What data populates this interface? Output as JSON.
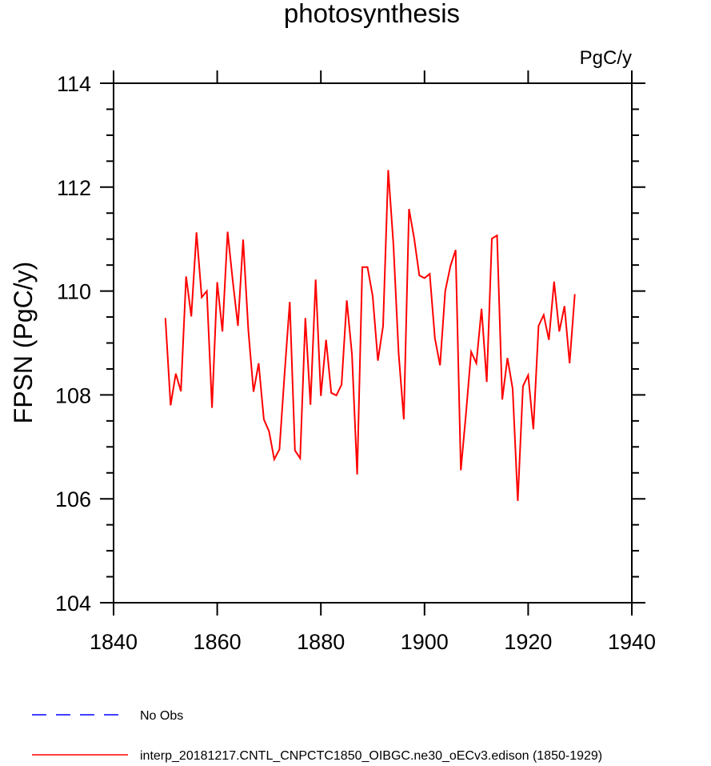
{
  "chart_data": {
    "type": "line",
    "title": "photosynthesis",
    "units_label": "PgC/y",
    "xlabel": "",
    "ylabel": "FPSN  (PgC/y)",
    "xlim": [
      1840,
      1940
    ],
    "ylim": [
      104,
      114
    ],
    "x_ticks": [
      "1840",
      "1860",
      "1880",
      "1900",
      "1920",
      "1940"
    ],
    "y_ticks": [
      "104",
      "106",
      "108",
      "110",
      "112",
      "114"
    ],
    "grid": false,
    "legend_position": "bottom-left",
    "series": [
      {
        "name": "No Obs",
        "color": "#0000ff",
        "style": "dashed",
        "x": [],
        "values": []
      },
      {
        "name": "interp_20181217.CNTL_CNPCTC1850_OIBGC.ne30_oECv3.edison (1850-1929)",
        "color": "#ff0000",
        "style": "solid",
        "x_start": 1850,
        "values": [
          109.48,
          107.8,
          108.41,
          108.07,
          110.28,
          109.51,
          111.13,
          109.88,
          110.0,
          107.75,
          110.17,
          109.22,
          111.14,
          110.2,
          109.33,
          110.99,
          109.25,
          108.06,
          108.61,
          107.53,
          107.3,
          106.76,
          106.95,
          108.4,
          109.79,
          106.93,
          106.78,
          109.48,
          107.81,
          110.22,
          107.98,
          109.06,
          108.04,
          107.99,
          108.2,
          109.82,
          108.78,
          106.47,
          110.46,
          110.46,
          109.9,
          108.66,
          109.33,
          112.33,
          110.9,
          108.81,
          107.53,
          111.58,
          111.02,
          110.3,
          110.25,
          110.33,
          109.09,
          108.57,
          110.0,
          110.48,
          110.79,
          106.55,
          107.63,
          108.83,
          108.61,
          109.66,
          108.25,
          111.01,
          111.07,
          107.91,
          108.71,
          108.12,
          105.96,
          108.17,
          108.38,
          107.34,
          109.33,
          109.54,
          109.06,
          110.18,
          109.22,
          109.71,
          108.61,
          109.94
        ]
      }
    ]
  }
}
